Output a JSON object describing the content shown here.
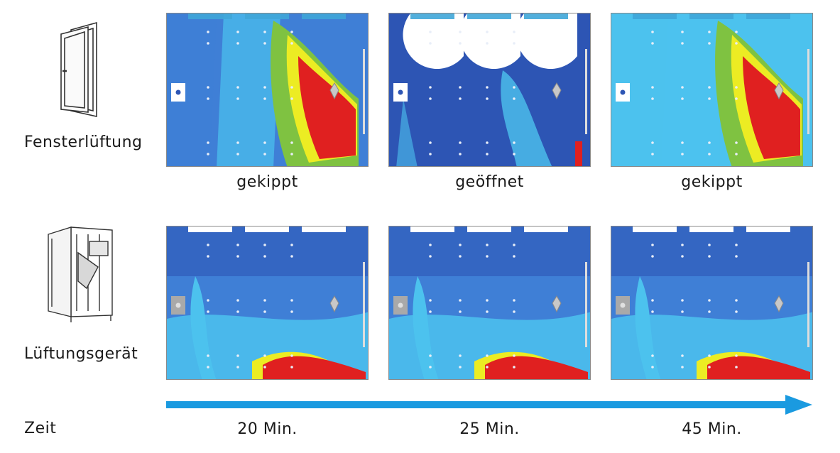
{
  "rows": [
    {
      "label": "Fensterlüftung",
      "icon": "tilt-window-icon",
      "panels": [
        {
          "state": "gekippt",
          "pattern": "hot-plume-window"
        },
        {
          "state": "geöffnet",
          "pattern": "open-window-cool"
        },
        {
          "state": "gekippt",
          "pattern": "hot-plume-window-warm"
        }
      ]
    },
    {
      "label": "Lüftungsgerät",
      "icon": "ventilation-unit-icon",
      "panels": [
        {
          "pattern": "ventilation-floor-plume"
        },
        {
          "pattern": "ventilation-floor-plume"
        },
        {
          "pattern": "ventilation-floor-plume"
        }
      ]
    }
  ],
  "timeline": {
    "label": "Zeit",
    "arrow_color": "#1a9ae0",
    "ticks": [
      "20 Min.",
      "25 Min.",
      "45 Min."
    ]
  },
  "colors": {
    "dark_blue": "#2d55b4",
    "mid_blue": "#3f7fd6",
    "light_blue": "#4cc2ee",
    "green": "#7fc241",
    "yellow": "#ecec23",
    "red": "#e02020"
  }
}
